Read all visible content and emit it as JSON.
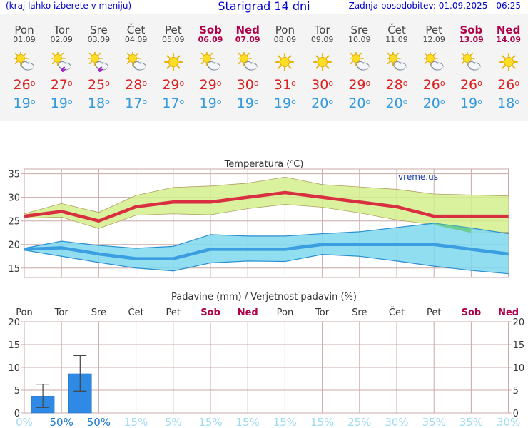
{
  "header": {
    "menu_link": "(kraj lahko izberete v meniju)",
    "title": "Starigrad 14 dni",
    "updated": "Zadnja posodobitev: 01.09.2025 - 06:25"
  },
  "days": [
    {
      "name": "Pon",
      "date": "01.09",
      "weekend": false,
      "icon": "sun-cloud-icon",
      "tmax": "26",
      "tmin": "19"
    },
    {
      "name": "Tor",
      "date": "02.09",
      "weekend": false,
      "icon": "sun-cloud-storm-icon",
      "tmax": "27",
      "tmin": "19"
    },
    {
      "name": "Sre",
      "date": "03.09",
      "weekend": false,
      "icon": "sun-cloud-storm-icon",
      "tmax": "25",
      "tmin": "18"
    },
    {
      "name": "Čet",
      "date": "04.09",
      "weekend": false,
      "icon": "sun-cloud-icon",
      "tmax": "28",
      "tmin": "17"
    },
    {
      "name": "Pet",
      "date": "05.09",
      "weekend": false,
      "icon": "sun-icon",
      "tmax": "29",
      "tmin": "17"
    },
    {
      "name": "Sob",
      "date": "06.09",
      "weekend": true,
      "icon": "sun-cloud-icon",
      "tmax": "29",
      "tmin": "19"
    },
    {
      "name": "Ned",
      "date": "07.09",
      "weekend": true,
      "icon": "sun-cloud-icon",
      "tmax": "30",
      "tmin": "19"
    },
    {
      "name": "Pon",
      "date": "08.09",
      "weekend": false,
      "icon": "sun-icon",
      "tmax": "31",
      "tmin": "19"
    },
    {
      "name": "Tor",
      "date": "09.09",
      "weekend": false,
      "icon": "sun-icon",
      "tmax": "30",
      "tmin": "20"
    },
    {
      "name": "Sre",
      "date": "10.09",
      "weekend": false,
      "icon": "sun-cloud-icon",
      "tmax": "29",
      "tmin": "20"
    },
    {
      "name": "Čet",
      "date": "11.09",
      "weekend": false,
      "icon": "sun-cloud-icon",
      "tmax": "28",
      "tmin": "20"
    },
    {
      "name": "Pet",
      "date": "12.09",
      "weekend": false,
      "icon": "sun-cloud-icon",
      "tmax": "26",
      "tmin": "20"
    },
    {
      "name": "Sob",
      "date": "13.09",
      "weekend": true,
      "icon": "sun-cloud-icon",
      "tmax": "26",
      "tmin": "19"
    },
    {
      "name": "Ned",
      "date": "14.09",
      "weekend": true,
      "icon": "sun-icon",
      "tmax": "26",
      "tmin": "18"
    }
  ],
  "colors": {
    "max_line": "#d83040",
    "max_band": "#d4ee8c",
    "min_line": "#3a9ee0",
    "min_band": "#7fd8ee",
    "overlap": "#66cc88",
    "precip_bar": "#2f8ae6",
    "grid": "#c9a9a9",
    "axis_text": "#333333",
    "weekend": "#b0004a",
    "prob_high": "#1a78d0",
    "prob_low": "#9fdcf0"
  },
  "chart_data": [
    {
      "type": "line",
      "title": "Temperatura (°C)",
      "title_main": "Temperatura (",
      "title_unit": "C)",
      "watermark": "vreme.us",
      "x": [
        "01.09",
        "02.09",
        "03.09",
        "04.09",
        "05.09",
        "06.09",
        "07.09",
        "08.09",
        "09.09",
        "10.09",
        "11.09",
        "12.09",
        "13.09",
        "14.09"
      ],
      "ylim": [
        13,
        36
      ],
      "yticks": [
        15,
        20,
        25,
        30,
        35
      ],
      "series": [
        {
          "name": "max",
          "values": [
            26,
            27,
            25,
            28,
            29,
            29,
            30,
            31,
            30,
            29,
            28,
            26,
            26,
            26
          ],
          "band_upper": [
            26.5,
            28.7,
            26.8,
            30.4,
            32.1,
            32.4,
            33.0,
            34.3,
            32.7,
            32.2,
            31.7,
            30.7,
            30.5,
            30.3
          ],
          "band_lower": [
            25.6,
            25.8,
            23.4,
            26.2,
            26.5,
            26.3,
            27.6,
            28.5,
            27.9,
            26.7,
            25.2,
            24.2,
            22.5,
            22.6
          ]
        },
        {
          "name": "min",
          "values": [
            19,
            19.3,
            18,
            17,
            17,
            19,
            19,
            19,
            20,
            20,
            20,
            20,
            19,
            18
          ],
          "band_upper": [
            19.2,
            20.7,
            19.8,
            19.2,
            19.6,
            22.1,
            21.8,
            21.8,
            22.3,
            22.7,
            23.6,
            24.5,
            23.5,
            22.3
          ],
          "band_lower": [
            18.8,
            17.5,
            16.2,
            15.0,
            14.4,
            16.1,
            16.5,
            16.4,
            17.9,
            17.5,
            16.5,
            15.4,
            14.5,
            13.8
          ]
        }
      ]
    },
    {
      "type": "bar",
      "title": "Padavine (mm) / Verjetnost padavin (%)",
      "categories": [
        "Pon",
        "Tor",
        "Sre",
        "Čet",
        "Pet",
        "Sob",
        "Ned",
        "Pon",
        "Tor",
        "Sre",
        "Čet",
        "Pet",
        "Sob",
        "Ned"
      ],
      "weekend": [
        false,
        false,
        false,
        false,
        false,
        true,
        true,
        false,
        false,
        false,
        false,
        false,
        true,
        true
      ],
      "values": [
        0,
        3.7,
        8.6,
        0,
        0,
        0,
        0,
        0,
        0,
        0,
        0,
        0,
        0,
        0
      ],
      "error_low": [
        0,
        1.2,
        4.8,
        0,
        0,
        0,
        0,
        0,
        0,
        0,
        0,
        0,
        0,
        0
      ],
      "error_high": [
        0,
        6.3,
        12.6,
        0,
        0,
        0,
        0,
        0,
        0,
        0,
        0,
        0,
        0,
        0
      ],
      "probability": [
        "0%",
        "50%",
        "50%",
        "15%",
        "5%",
        "15%",
        "15%",
        "15%",
        "15%",
        "25%",
        "30%",
        "35%",
        "35%",
        "30%"
      ],
      "prob_high": [
        false,
        true,
        true,
        false,
        false,
        false,
        false,
        false,
        false,
        false,
        false,
        false,
        false,
        false
      ],
      "ylim": [
        0,
        20
      ],
      "yticks": [
        0,
        5,
        10,
        15,
        20
      ]
    }
  ]
}
